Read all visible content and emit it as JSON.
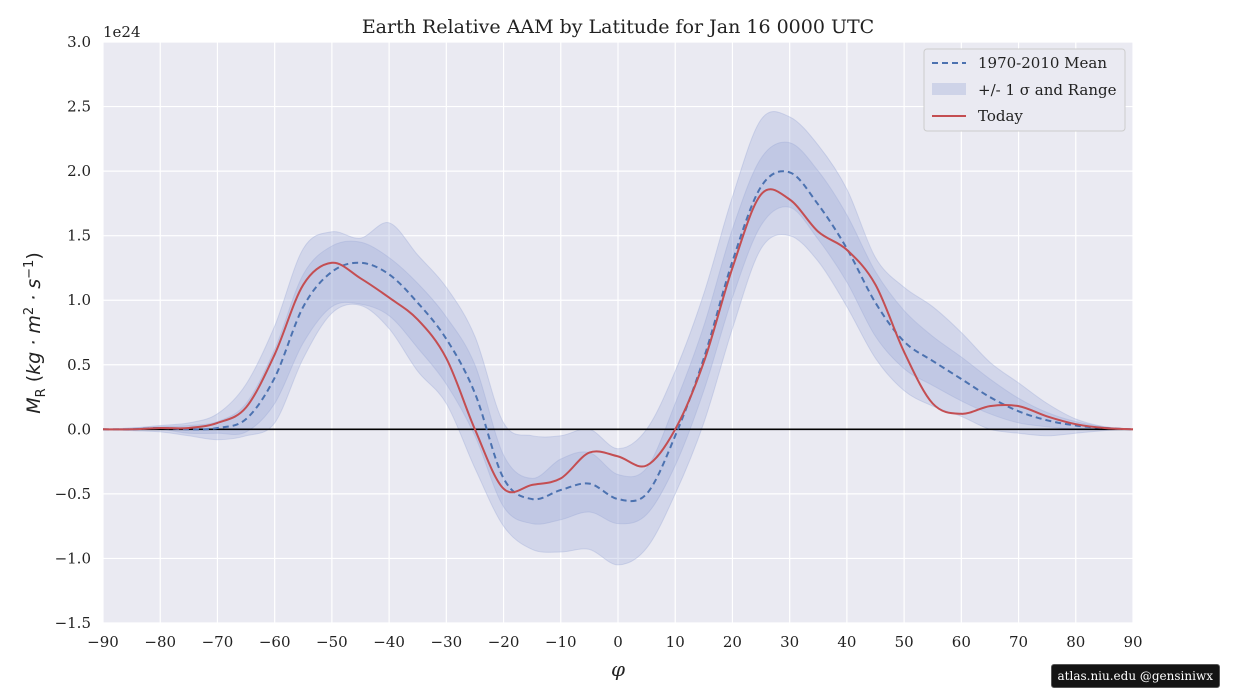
{
  "chart_data": {
    "type": "line",
    "title": "Earth Relative AAM by Latitude for Jan 16 0000 UTC",
    "xlabel": "φ",
    "ylabel": "M_R (kg·m²·s⁻¹)",
    "offset_text": "1e24",
    "xlim": [
      -90,
      90
    ],
    "ylim": [
      -1.5,
      3.0
    ],
    "grid": true,
    "legend_position": "top-right",
    "x_ticks": [
      -90,
      -80,
      -70,
      -60,
      -50,
      -40,
      -30,
      -20,
      -10,
      0,
      10,
      20,
      30,
      40,
      50,
      60,
      70,
      80,
      90
    ],
    "y_ticks": [
      -1.5,
      -1.0,
      -0.5,
      0.0,
      0.5,
      1.0,
      1.5,
      2.0,
      2.5,
      3.0
    ],
    "x_tick_labels": [
      "−90",
      "−80",
      "−70",
      "−60",
      "−50",
      "−40",
      "−30",
      "−20",
      "−10",
      "0",
      "10",
      "20",
      "30",
      "40",
      "50",
      "60",
      "70",
      "80",
      "90"
    ],
    "y_tick_labels": [
      "−1.5",
      "−1.0",
      "−0.5",
      "0.0",
      "0.5",
      "1.0",
      "1.5",
      "2.0",
      "2.5",
      "3.0"
    ],
    "legend": {
      "mean": "1970-2010 Mean",
      "band": "+/- 1 σ and Range",
      "today": "Today"
    },
    "colors": {
      "mean": "#4c72b0",
      "today": "#c44e52",
      "band": "#9aaad8",
      "plot_bg": "#eaeaf2",
      "zero_line": "#000000"
    },
    "x": [
      -90,
      -85,
      -80,
      -75,
      -70,
      -65,
      -60,
      -55,
      -50,
      -45,
      -40,
      -35,
      -30,
      -25,
      -20,
      -15,
      -10,
      -5,
      0,
      5,
      10,
      15,
      20,
      25,
      30,
      35,
      40,
      45,
      50,
      55,
      60,
      65,
      70,
      75,
      80,
      85,
      90
    ],
    "series": [
      {
        "name": "1970-2010 Mean",
        "role": "mean",
        "values": [
          0,
          0,
          0.01,
          0.0,
          0.01,
          0.08,
          0.4,
          0.95,
          1.22,
          1.29,
          1.2,
          0.98,
          0.7,
          0.28,
          -0.38,
          -0.54,
          -0.47,
          -0.42,
          -0.54,
          -0.5,
          -0.05,
          0.55,
          1.3,
          1.88,
          1.99,
          1.74,
          1.4,
          0.98,
          0.68,
          0.53,
          0.39,
          0.25,
          0.14,
          0.07,
          0.03,
          0.01,
          0
        ]
      },
      {
        "name": "Today",
        "role": "today",
        "values": [
          0,
          0,
          0.01,
          0.01,
          0.05,
          0.17,
          0.58,
          1.12,
          1.29,
          1.17,
          1.02,
          0.85,
          0.55,
          0.0,
          -0.46,
          -0.43,
          -0.38,
          -0.18,
          -0.21,
          -0.28,
          0.0,
          0.52,
          1.25,
          1.82,
          1.78,
          1.53,
          1.39,
          1.12,
          0.6,
          0.2,
          0.12,
          0.18,
          0.18,
          0.1,
          0.04,
          0.01,
          0
        ]
      }
    ],
    "bands": [
      {
        "name": "+/- 1 σ",
        "lower": [
          0,
          0,
          0,
          -0.03,
          -0.03,
          -0.02,
          0.2,
          0.67,
          0.95,
          0.97,
          0.88,
          0.63,
          0.35,
          -0.05,
          -0.6,
          -0.73,
          -0.7,
          -0.64,
          -0.73,
          -0.66,
          -0.28,
          0.3,
          1.02,
          1.58,
          1.72,
          1.47,
          1.14,
          0.72,
          0.47,
          0.34,
          0.22,
          0.12,
          0.05,
          0.02,
          0.0,
          0.0,
          0
        ],
        "upper": [
          0,
          0.01,
          0.02,
          0.03,
          0.06,
          0.2,
          0.62,
          1.2,
          1.42,
          1.45,
          1.33,
          1.13,
          0.87,
          0.5,
          -0.2,
          -0.38,
          -0.23,
          -0.18,
          -0.35,
          -0.3,
          0.2,
          0.8,
          1.55,
          2.1,
          2.22,
          2.0,
          1.66,
          1.22,
          0.92,
          0.72,
          0.56,
          0.39,
          0.24,
          0.13,
          0.06,
          0.02,
          0
        ]
      },
      {
        "name": "Range",
        "lower": [
          0,
          -0.01,
          -0.02,
          -0.05,
          -0.08,
          -0.05,
          0.05,
          0.55,
          0.9,
          0.96,
          0.78,
          0.45,
          0.2,
          -0.3,
          -0.75,
          -0.93,
          -0.95,
          -0.93,
          -1.05,
          -0.92,
          -0.5,
          0.05,
          0.78,
          1.4,
          1.5,
          1.3,
          0.95,
          0.55,
          0.3,
          0.18,
          0.1,
          0.0,
          -0.03,
          -0.05,
          -0.03,
          -0.01,
          0
        ],
        "upper": [
          0,
          0.01,
          0.03,
          0.05,
          0.12,
          0.35,
          0.8,
          1.4,
          1.53,
          1.48,
          1.6,
          1.35,
          1.1,
          0.72,
          0.05,
          -0.05,
          -0.05,
          0.0,
          -0.15,
          0.0,
          0.45,
          1.05,
          1.8,
          2.4,
          2.42,
          2.2,
          1.86,
          1.33,
          1.1,
          0.95,
          0.75,
          0.52,
          0.36,
          0.2,
          0.08,
          0.02,
          0
        ]
      }
    ]
  },
  "watermark": "atlas.niu.edu  @gensiniwx"
}
